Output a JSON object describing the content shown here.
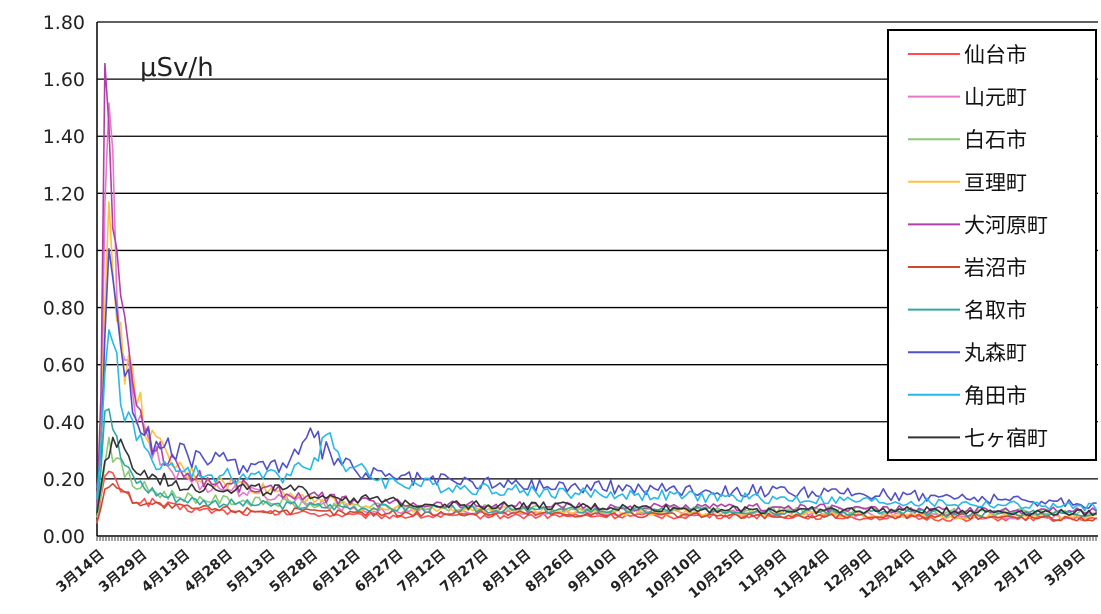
{
  "chart_data": {
    "type": "line",
    "unit_label": "μSv/h",
    "ylim": [
      0,
      1.8
    ],
    "yticks": [
      "0.00",
      "0.20",
      "0.40",
      "0.60",
      "0.80",
      "1.00",
      "1.20",
      "1.40",
      "1.60",
      "1.80"
    ],
    "xticks": [
      "3月14日",
      "3月29日",
      "4月13日",
      "4月28日",
      "5月13日",
      "5月28日",
      "6月12日",
      "6月27日",
      "7月12日",
      "7月27日",
      "8月11日",
      "8月26日",
      "9月10日",
      "9月25日",
      "10月10日",
      "10月25日",
      "11月9日",
      "11月24日",
      "12月9日",
      "12月24日",
      "1月14日",
      "1月29日",
      "2月17日",
      "3月9日"
    ],
    "x_range": [
      0,
      380
    ],
    "grid": "horizontal",
    "legend_position": "top-right",
    "series": [
      {
        "name": "仙台市",
        "color": "#ff4d4d",
        "points": [
          [
            0,
            0.05
          ],
          [
            2,
            0.17
          ],
          [
            4,
            0.22
          ],
          [
            8,
            0.18
          ],
          [
            12,
            0.13
          ],
          [
            20,
            0.12
          ],
          [
            30,
            0.1
          ],
          [
            40,
            0.09
          ],
          [
            60,
            0.08
          ],
          [
            80,
            0.08
          ],
          [
            100,
            0.07
          ],
          [
            140,
            0.07
          ],
          [
            200,
            0.07
          ],
          [
            260,
            0.07
          ],
          [
            320,
            0.06
          ],
          [
            360,
            0.06
          ],
          [
            380,
            0.06
          ]
        ]
      },
      {
        "name": "山元町",
        "color": "#e878c8",
        "points": [
          [
            0,
            0.1
          ],
          [
            2,
            0.5
          ],
          [
            4,
            1.55
          ],
          [
            6,
            1.2
          ],
          [
            8,
            0.85
          ],
          [
            10,
            0.65
          ],
          [
            14,
            0.45
          ],
          [
            18,
            0.35
          ],
          [
            22,
            0.28
          ],
          [
            30,
            0.22
          ],
          [
            40,
            0.18
          ],
          [
            60,
            0.15
          ],
          [
            80,
            0.12
          ],
          [
            100,
            0.09
          ],
          [
            140,
            0.08
          ],
          [
            200,
            0.08
          ],
          [
            260,
            0.08
          ],
          [
            320,
            0.07
          ],
          [
            380,
            0.07
          ]
        ]
      },
      {
        "name": "白石市",
        "color": "#8cc878",
        "points": [
          [
            0,
            0.06
          ],
          [
            2,
            0.2
          ],
          [
            4,
            0.35
          ],
          [
            8,
            0.25
          ],
          [
            14,
            0.18
          ],
          [
            24,
            0.15
          ],
          [
            40,
            0.13
          ],
          [
            60,
            0.12
          ],
          [
            80,
            0.11
          ],
          [
            120,
            0.1
          ],
          [
            200,
            0.09
          ],
          [
            280,
            0.09
          ],
          [
            380,
            0.08
          ]
        ]
      },
      {
        "name": "亘理町",
        "color": "#ffc040",
        "points": [
          [
            0,
            0.1
          ],
          [
            2,
            0.45
          ],
          [
            4,
            1.2
          ],
          [
            6,
            1.05
          ],
          [
            8,
            0.75
          ],
          [
            10,
            0.62
          ],
          [
            14,
            0.52
          ],
          [
            18,
            0.4
          ],
          [
            22,
            0.32
          ],
          [
            30,
            0.24
          ],
          [
            40,
            0.2
          ],
          [
            60,
            0.17
          ],
          [
            80,
            0.14
          ],
          [
            100,
            0.1
          ],
          [
            160,
            0.09
          ],
          [
            240,
            0.08
          ],
          [
            320,
            0.07
          ],
          [
            380,
            0.07
          ]
        ]
      },
      {
        "name": "大河原町",
        "color": "#b040a8",
        "points": [
          [
            0,
            0.1
          ],
          [
            2,
            0.6
          ],
          [
            3,
            1.6
          ],
          [
            5,
            1.4
          ],
          [
            7,
            1.0
          ],
          [
            9,
            0.8
          ],
          [
            12,
            0.6
          ],
          [
            16,
            0.45
          ],
          [
            20,
            0.34
          ],
          [
            26,
            0.28
          ],
          [
            34,
            0.22
          ],
          [
            44,
            0.19
          ],
          [
            60,
            0.17
          ],
          [
            80,
            0.14
          ],
          [
            100,
            0.12
          ],
          [
            140,
            0.11
          ],
          [
            200,
            0.1
          ],
          [
            260,
            0.1
          ],
          [
            320,
            0.09
          ],
          [
            380,
            0.09
          ]
        ]
      },
      {
        "name": "岩沼市",
        "color": "#d04830",
        "points": [
          [
            0,
            0.05
          ],
          [
            3,
            0.15
          ],
          [
            6,
            0.2
          ],
          [
            10,
            0.15
          ],
          [
            16,
            0.12
          ],
          [
            30,
            0.1
          ],
          [
            60,
            0.09
          ],
          [
            100,
            0.08
          ],
          [
            160,
            0.08
          ],
          [
            240,
            0.07
          ],
          [
            320,
            0.07
          ],
          [
            380,
            0.06
          ]
        ]
      },
      {
        "name": "名取市",
        "color": "#30a8a0",
        "points": [
          [
            0,
            0.1
          ],
          [
            2,
            0.3
          ],
          [
            3,
            0.5
          ],
          [
            5,
            0.45
          ],
          [
            8,
            0.3
          ],
          [
            12,
            0.22
          ],
          [
            18,
            0.17
          ],
          [
            26,
            0.14
          ],
          [
            40,
            0.12
          ],
          [
            60,
            0.11
          ],
          [
            100,
            0.1
          ],
          [
            160,
            0.09
          ],
          [
            240,
            0.09
          ],
          [
            320,
            0.08
          ],
          [
            380,
            0.08
          ]
        ]
      },
      {
        "name": "丸森町",
        "color": "#5050c8",
        "points": [
          [
            0,
            0.15
          ],
          [
            2,
            0.4
          ],
          [
            4,
            1.1
          ],
          [
            6,
            0.95
          ],
          [
            8,
            0.8
          ],
          [
            10,
            0.62
          ],
          [
            14,
            0.45
          ],
          [
            18,
            0.35
          ],
          [
            22,
            0.32
          ],
          [
            30,
            0.29
          ],
          [
            40,
            0.27
          ],
          [
            55,
            0.25
          ],
          [
            70,
            0.25
          ],
          [
            78,
            0.3
          ],
          [
            82,
            0.35
          ],
          [
            88,
            0.28
          ],
          [
            100,
            0.22
          ],
          [
            120,
            0.2
          ],
          [
            140,
            0.19
          ],
          [
            160,
            0.18
          ],
          [
            200,
            0.17
          ],
          [
            240,
            0.16
          ],
          [
            280,
            0.15
          ],
          [
            320,
            0.14
          ],
          [
            360,
            0.12
          ],
          [
            380,
            0.11
          ]
        ]
      },
      {
        "name": "角田市",
        "color": "#28b8e8",
        "points": [
          [
            0,
            0.12
          ],
          [
            2,
            0.35
          ],
          [
            4,
            0.8
          ],
          [
            6,
            0.7
          ],
          [
            8,
            0.55
          ],
          [
            12,
            0.4
          ],
          [
            18,
            0.3
          ],
          [
            24,
            0.25
          ],
          [
            34,
            0.22
          ],
          [
            50,
            0.21
          ],
          [
            70,
            0.21
          ],
          [
            80,
            0.26
          ],
          [
            84,
            0.3
          ],
          [
            88,
            0.36
          ],
          [
            94,
            0.25
          ],
          [
            110,
            0.19
          ],
          [
            140,
            0.17
          ],
          [
            180,
            0.15
          ],
          [
            220,
            0.14
          ],
          [
            260,
            0.13
          ],
          [
            300,
            0.12
          ],
          [
            340,
            0.11
          ],
          [
            380,
            0.1
          ]
        ]
      },
      {
        "name": "七ヶ宿町",
        "color": "#333333",
        "points": [
          [
            0,
            0.08
          ],
          [
            3,
            0.25
          ],
          [
            6,
            0.35
          ],
          [
            10,
            0.28
          ],
          [
            16,
            0.22
          ],
          [
            24,
            0.2
          ],
          [
            34,
            0.18
          ],
          [
            50,
            0.17
          ],
          [
            70,
            0.16
          ],
          [
            90,
            0.14
          ],
          [
            110,
            0.12
          ],
          [
            140,
            0.11
          ],
          [
            200,
            0.1
          ],
          [
            260,
            0.09
          ],
          [
            320,
            0.09
          ],
          [
            380,
            0.08
          ]
        ]
      }
    ]
  }
}
